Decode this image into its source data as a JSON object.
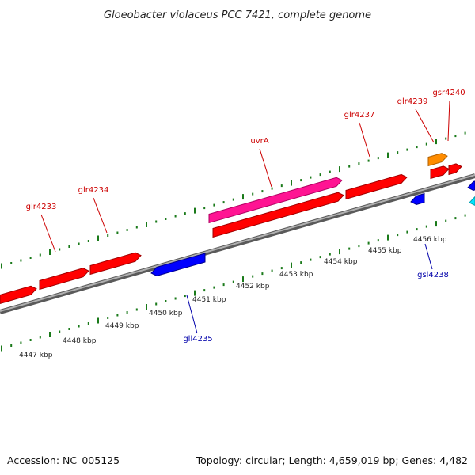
{
  "title": "Gloeobacter violaceus PCC 7421, complete genome",
  "footer": {
    "accession": "Accession: NC_005125",
    "summary": "Topology: circular; Length: 4,659,019 bp; Genes: 4,482"
  },
  "colors": {
    "forward_gene": "#ff0000",
    "reverse_gene": "#0000ff",
    "highlight_gene": "#ff1493",
    "orange_gene": "#ff8c00",
    "cyan_gene": "#00e5ff",
    "backbone": "#808080",
    "tick": "#1a7a1a",
    "forward_label": "#cc0000",
    "reverse_label": "#0000aa"
  },
  "scale_labels": [
    "4447 kbp",
    "4448 kbp",
    "4449 kbp",
    "4450 kbp",
    "4451 kbp",
    "4452 kbp",
    "4453 kbp",
    "4454 kbp",
    "4455 kbp",
    "4456 kbp"
  ],
  "gene_labels": [
    {
      "name": "glr4233",
      "strand": "forward"
    },
    {
      "name": "glr4234",
      "strand": "forward"
    },
    {
      "name": "uvrA",
      "strand": "forward"
    },
    {
      "name": "glr4237",
      "strand": "forward"
    },
    {
      "name": "glr4239",
      "strand": "forward"
    },
    {
      "name": "gsr4240",
      "strand": "forward"
    },
    {
      "name": "gll4235",
      "strand": "reverse"
    },
    {
      "name": "gsl4238",
      "strand": "reverse"
    }
  ]
}
